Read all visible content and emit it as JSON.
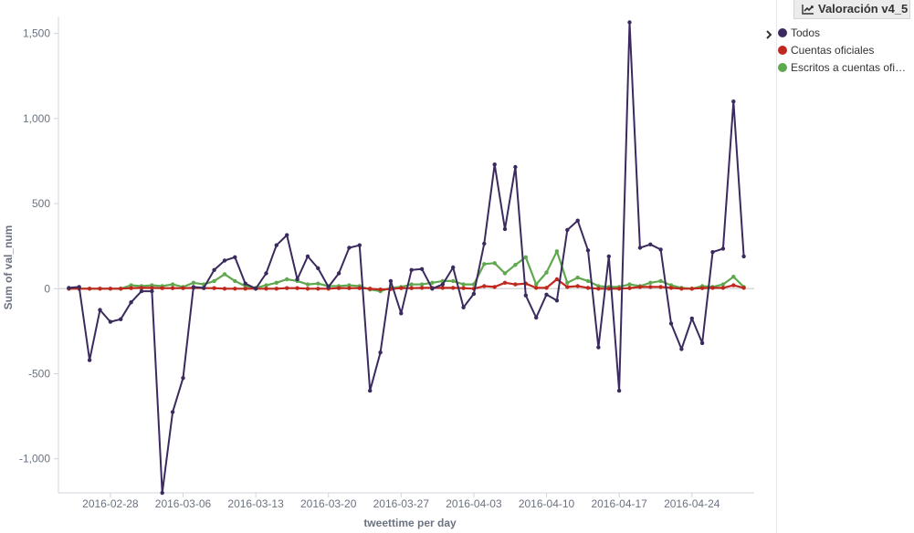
{
  "panel": {
    "title": "Valoración v4_5",
    "icon": "line-chart-icon"
  },
  "legend": {
    "toggle_icon": "chevron-right-icon",
    "items": [
      {
        "label": "Todos",
        "color": "#3b2a5e"
      },
      {
        "label": "Cuentas oficiales",
        "color": "#c0281e"
      },
      {
        "label": "Escritos a cuentas oficiales",
        "color": "#60a84f"
      }
    ]
  },
  "chart_data": {
    "type": "line",
    "xlabel": "tweettime per day",
    "ylabel": "Sum of val_num",
    "ylim": [
      -1200,
      1600
    ],
    "yticks": [
      -1000,
      -500,
      0,
      500,
      1000,
      1500
    ],
    "ytick_labels": [
      "-1,000",
      "-500",
      "0",
      "500",
      "1,000",
      "1,500"
    ],
    "xlim": [
      "2016-02-23",
      "2016-04-30"
    ],
    "xticks": [
      "2016-02-28",
      "2016-03-06",
      "2016-03-13",
      "2016-03-20",
      "2016-03-27",
      "2016-04-03",
      "2016-04-10",
      "2016-04-17",
      "2016-04-24"
    ],
    "x_start": "2016-02-24",
    "legend_position": "right",
    "grid": false,
    "series": [
      {
        "name": "Todos",
        "color": "#3b2a5e",
        "values": [
          5,
          10,
          -420,
          -125,
          -195,
          -180,
          -80,
          -15,
          -15,
          -1200,
          -725,
          -525,
          10,
          5,
          110,
          165,
          185,
          30,
          0,
          90,
          255,
          315,
          55,
          190,
          120,
          10,
          90,
          240,
          255,
          -600,
          -375,
          45,
          -145,
          110,
          115,
          0,
          25,
          125,
          -110,
          -30,
          265,
          730,
          350,
          715,
          -40,
          -170,
          -35,
          -70,
          345,
          400,
          225,
          -345,
          190,
          -600,
          1565,
          240,
          260,
          230,
          -205,
          -355,
          -175,
          -320,
          215,
          235,
          1100,
          190
        ]
      },
      {
        "name": "Cuentas oficiales",
        "color": "#c0281e",
        "values": [
          0,
          0,
          0,
          0,
          0,
          0,
          3,
          5,
          5,
          3,
          3,
          3,
          5,
          3,
          3,
          0,
          0,
          0,
          0,
          0,
          0,
          3,
          3,
          0,
          0,
          0,
          3,
          3,
          3,
          0,
          -5,
          -2,
          3,
          3,
          5,
          5,
          5,
          5,
          3,
          0,
          15,
          10,
          35,
          25,
          30,
          5,
          5,
          55,
          10,
          15,
          5,
          0,
          0,
          0,
          3,
          10,
          10,
          10,
          5,
          0,
          0,
          3,
          5,
          5,
          20,
          5
        ]
      },
      {
        "name": "Escritos a cuentas oficiales",
        "color": "#60a84f",
        "values": [
          0,
          0,
          0,
          0,
          0,
          0,
          20,
          15,
          20,
          15,
          25,
          10,
          35,
          25,
          45,
          85,
          45,
          15,
          5,
          20,
          35,
          55,
          45,
          25,
          30,
          15,
          15,
          20,
          15,
          -5,
          -15,
          5,
          10,
          25,
          25,
          35,
          45,
          45,
          25,
          25,
          145,
          150,
          90,
          140,
          185,
          25,
          95,
          220,
          35,
          65,
          45,
          15,
          10,
          10,
          25,
          15,
          35,
          45,
          20,
          5,
          0,
          15,
          10,
          25,
          70,
          10
        ]
      }
    ]
  }
}
